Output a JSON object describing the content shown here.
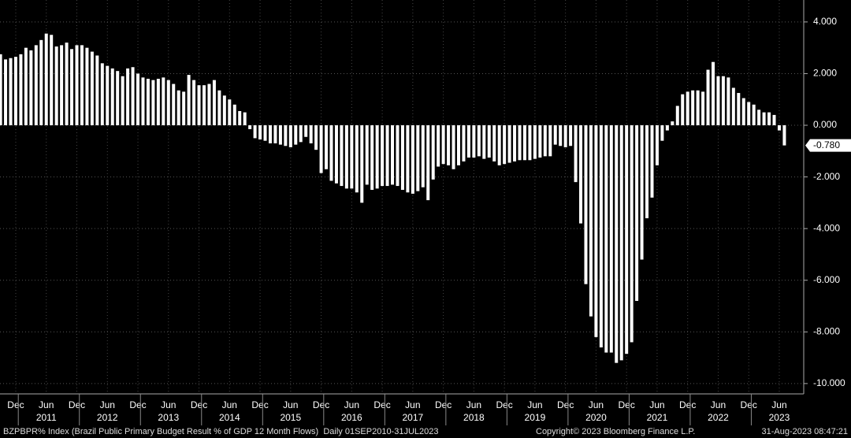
{
  "chart_data": {
    "type": "bar",
    "color": "#ffffff",
    "categories": [
      null,
      null,
      null,
      "Dec",
      null,
      null,
      null,
      null,
      null,
      "Jun",
      null,
      null,
      null,
      null,
      null,
      "Dec",
      null,
      null,
      null,
      null,
      null,
      "Jun",
      null,
      null,
      null,
      null,
      null,
      "Dec",
      null,
      null,
      null,
      null,
      null,
      "Jun",
      null,
      null,
      null,
      null,
      null,
      "Dec",
      null,
      null,
      null,
      null,
      null,
      "Jun",
      null,
      null,
      null,
      null,
      null,
      "Dec",
      null,
      null,
      null,
      null,
      null,
      "Jun",
      null,
      null,
      null,
      null,
      null,
      "Dec",
      null,
      null,
      null,
      null,
      null,
      "Jun",
      null,
      null,
      null,
      null,
      null,
      "Dec",
      null,
      null,
      null,
      null,
      null,
      "Jun",
      null,
      null,
      null,
      null,
      null,
      "Dec",
      null,
      null,
      null,
      null,
      null,
      "Jun",
      null,
      null,
      null,
      null,
      null,
      "Dec",
      null,
      null,
      null,
      null,
      null,
      "Jun",
      null,
      null,
      null,
      null,
      null,
      "Dec",
      null,
      null,
      null,
      null,
      null,
      "Jun",
      null,
      null,
      null,
      null,
      null,
      "Dec",
      null,
      null,
      null,
      null,
      null,
      "Jun",
      null,
      null,
      null,
      null,
      null,
      "Dec",
      null,
      null,
      null,
      null,
      null,
      "Jun",
      null,
      null,
      null,
      null,
      null,
      "Dec",
      null,
      null,
      null,
      null,
      null,
      "Jun",
      null
    ],
    "year_labels": [
      null,
      null,
      null,
      null,
      null,
      null,
      null,
      null,
      null,
      "2011",
      null,
      null,
      null,
      null,
      null,
      null,
      null,
      null,
      null,
      null,
      null,
      "2012",
      null,
      null,
      null,
      null,
      null,
      null,
      null,
      null,
      null,
      null,
      null,
      "2013",
      null,
      null,
      null,
      null,
      null,
      null,
      null,
      null,
      null,
      null,
      null,
      "2014",
      null,
      null,
      null,
      null,
      null,
      null,
      null,
      null,
      null,
      null,
      null,
      "2015",
      null,
      null,
      null,
      null,
      null,
      null,
      null,
      null,
      null,
      null,
      null,
      "2016",
      null,
      null,
      null,
      null,
      null,
      null,
      null,
      null,
      null,
      null,
      null,
      "2017",
      null,
      null,
      null,
      null,
      null,
      null,
      null,
      null,
      null,
      null,
      null,
      "2018",
      null,
      null,
      null,
      null,
      null,
      null,
      null,
      null,
      null,
      null,
      null,
      "2019",
      null,
      null,
      null,
      null,
      null,
      null,
      null,
      null,
      null,
      null,
      null,
      "2020",
      null,
      null,
      null,
      null,
      null,
      null,
      null,
      null,
      null,
      null,
      null,
      "2021",
      null,
      null,
      null,
      null,
      null,
      null,
      null,
      null,
      null,
      null,
      null,
      "2022",
      null,
      null,
      null,
      null,
      null,
      null,
      null,
      null,
      null,
      null,
      null,
      "2023",
      null
    ],
    "values": [
      2.75,
      2.55,
      2.6,
      2.65,
      2.75,
      3.0,
      2.9,
      3.1,
      3.3,
      3.55,
      3.5,
      3.05,
      3.1,
      3.2,
      2.95,
      3.1,
      3.1,
      3.0,
      2.85,
      2.7,
      2.4,
      2.3,
      2.2,
      2.1,
      1.9,
      2.2,
      2.25,
      2.0,
      1.85,
      1.8,
      1.75,
      1.8,
      1.85,
      1.75,
      1.6,
      1.35,
      1.3,
      1.95,
      1.75,
      1.55,
      1.55,
      1.6,
      1.75,
      1.35,
      1.15,
      1.0,
      0.8,
      0.55,
      0.5,
      -0.15,
      -0.5,
      -0.55,
      -0.6,
      -0.7,
      -0.7,
      -0.75,
      -0.8,
      -0.85,
      -0.75,
      -0.65,
      -0.45,
      -0.7,
      -0.95,
      -1.85,
      -1.7,
      -2.15,
      -2.25,
      -2.35,
      -2.45,
      -2.45,
      -2.6,
      -3.0,
      -2.3,
      -2.5,
      -2.45,
      -2.35,
      -2.35,
      -2.3,
      -2.35,
      -2.5,
      -2.6,
      -2.65,
      -2.55,
      -2.4,
      -2.9,
      -2.1,
      -1.6,
      -1.5,
      -1.55,
      -1.7,
      -1.55,
      -1.4,
      -1.25,
      -1.25,
      -1.2,
      -1.3,
      -1.25,
      -1.4,
      -1.55,
      -1.5,
      -1.45,
      -1.4,
      -1.35,
      -1.35,
      -1.35,
      -1.3,
      -1.25,
      -1.2,
      -1.2,
      -0.75,
      -0.8,
      -0.85,
      -0.8,
      -2.2,
      -3.8,
      -6.15,
      -7.4,
      -8.2,
      -8.6,
      -8.8,
      -8.8,
      -9.2,
      -9.1,
      -8.85,
      -8.4,
      -6.8,
      -5.2,
      -3.6,
      -2.8,
      -1.55,
      -0.6,
      -0.2,
      0.15,
      0.75,
      1.2,
      1.3,
      1.35,
      1.35,
      1.3,
      2.15,
      2.45,
      1.9,
      1.9,
      1.85,
      1.45,
      1.25,
      1.05,
      0.9,
      0.8,
      0.6,
      0.5,
      0.5,
      0.4,
      -0.2,
      -0.78
    ],
    "value_labels": [
      null,
      null,
      null,
      null,
      null,
      null,
      null,
      null,
      null,
      null,
      null,
      null,
      null,
      null,
      null,
      null,
      null,
      null,
      null,
      null,
      null,
      null,
      null,
      null,
      null,
      null,
      null,
      null,
      null,
      null,
      null,
      null,
      null,
      null,
      null,
      null,
      null,
      null,
      null,
      null,
      null,
      null,
      null,
      null,
      null,
      null,
      null,
      null,
      null,
      null,
      null,
      null,
      null,
      null,
      null,
      null,
      null,
      null,
      null,
      null,
      null,
      null,
      null,
      null,
      null,
      null,
      null,
      null,
      null,
      null,
      null,
      null,
      null,
      null,
      null,
      null,
      null,
      null,
      null,
      null,
      null,
      null,
      null,
      null,
      null,
      null,
      null,
      null,
      null,
      null,
      null,
      null,
      null,
      null,
      null,
      null,
      null,
      null,
      null,
      null,
      null,
      null,
      null,
      null,
      null,
      null,
      null,
      null,
      null,
      null,
      null,
      null,
      null,
      null,
      null,
      null,
      null,
      null,
      null,
      null,
      null,
      null,
      null,
      null,
      null,
      null,
      null,
      null,
      null,
      null,
      null,
      null,
      null,
      null,
      null,
      null,
      null,
      null,
      null,
      null,
      null,
      null,
      null,
      null,
      null,
      null,
      null,
      null,
      null,
      null,
      null,
      null,
      null,
      null,
      "-0.780"
    ],
    "ylim": [
      -10.4,
      4.85
    ],
    "yticks": [
      {
        "value": 4,
        "label": "4.000"
      },
      {
        "value": 2,
        "label": "2.000"
      },
      {
        "value": 0,
        "label": "0.000"
      },
      {
        "value": -2,
        "label": "-2.000"
      },
      {
        "value": -4,
        "label": "-4.000"
      },
      {
        "value": -6,
        "label": "-6.000"
      },
      {
        "value": -8,
        "label": "-8.000"
      },
      {
        "value": -10,
        "label": "-10.000"
      }
    ],
    "grid": true
  },
  "footer": {
    "source": "BZPBPR% Index (Brazil Public Primary Budget Result % of GDP 12 Month Flows)  Daily 01SEP2010-31JUL2023",
    "copyright": "Copyright© 2023 Bloomberg Finance L.P.",
    "timestamp": "31-Aug-2023 08:47:21"
  }
}
